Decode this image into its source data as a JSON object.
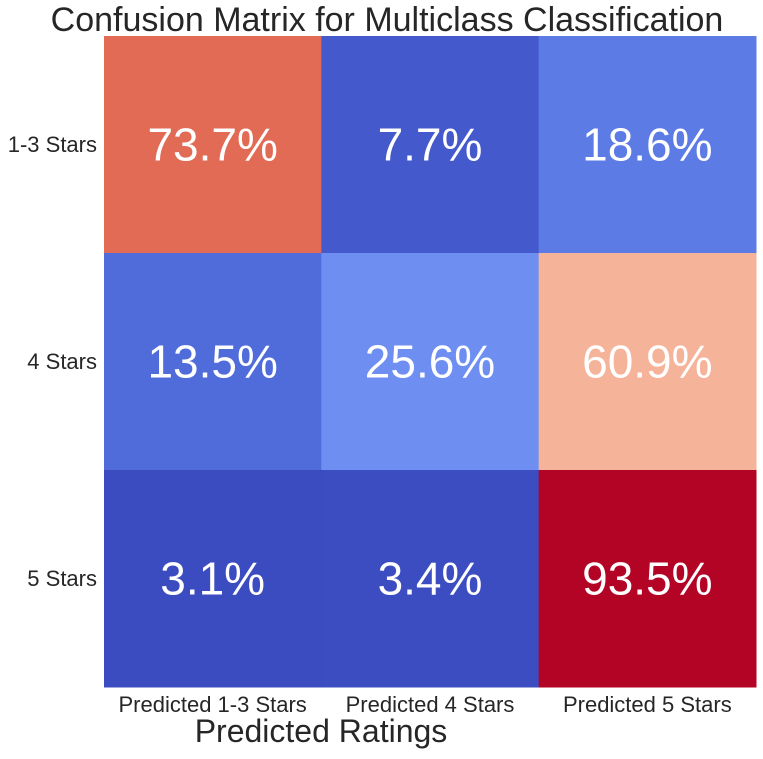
{
  "chart_data": {
    "type": "heatmap",
    "title": "Confusion Matrix for Multiclass Classification",
    "xlabel": "Predicted Ratings",
    "ylabel": "",
    "x_categories": [
      "Predicted 1-3 Stars",
      "Predicted 4 Stars",
      "Predicted 5 Stars"
    ],
    "y_categories": [
      "1-3 Stars",
      "4 Stars",
      "5 Stars"
    ],
    "values": [
      [
        73.7,
        7.7,
        18.6
      ],
      [
        13.5,
        25.6,
        60.9
      ],
      [
        3.1,
        3.4,
        93.5
      ]
    ],
    "value_labels": [
      [
        "73.7%",
        "7.7%",
        "18.6%"
      ],
      [
        "13.5%",
        "25.6%",
        "60.9%"
      ],
      [
        "3.1%",
        "3.4%",
        "93.5%"
      ]
    ],
    "unit": "%",
    "colormap": "coolwarm",
    "colors": {
      "low": "#3b4cc0",
      "mid": "#dddddd",
      "high": "#b40426",
      "annotation": "#ffffff",
      "text": "#262626"
    },
    "value_range": [
      3.1,
      93.5
    ],
    "grid": false,
    "colorbar": false
  }
}
